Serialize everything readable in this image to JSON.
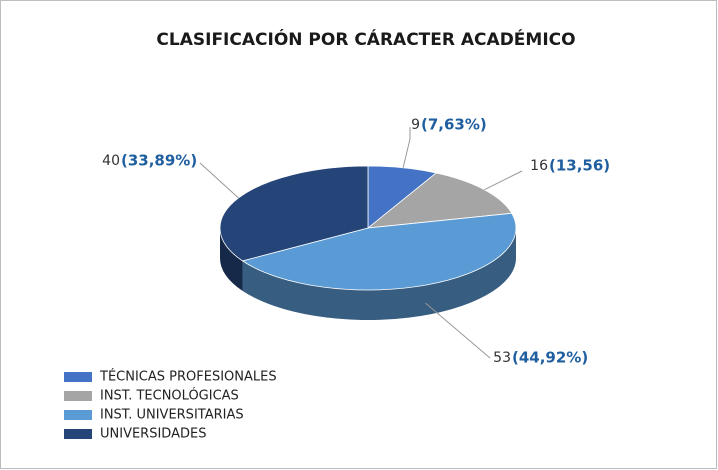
{
  "chart_data": {
    "type": "pie",
    "title": "CLASIFICACIÓN POR CÁRACTER ACADÉMICO",
    "categories": [
      "TÉCNICAS PROFESIONALES",
      "INST. TECNOLÓGICAS",
      "INST. UNIVERSITARIAS",
      "UNIVERSIDADES"
    ],
    "values": [
      9,
      16,
      53,
      40
    ],
    "percent_labels": [
      "(7,63%)",
      "(13,56)",
      "(44,92%)",
      "(33,89%)"
    ],
    "colors": [
      "#4472c4",
      "#a5a5a5",
      "#5b9bd5",
      "#254478"
    ],
    "legend": "bottom-left"
  }
}
